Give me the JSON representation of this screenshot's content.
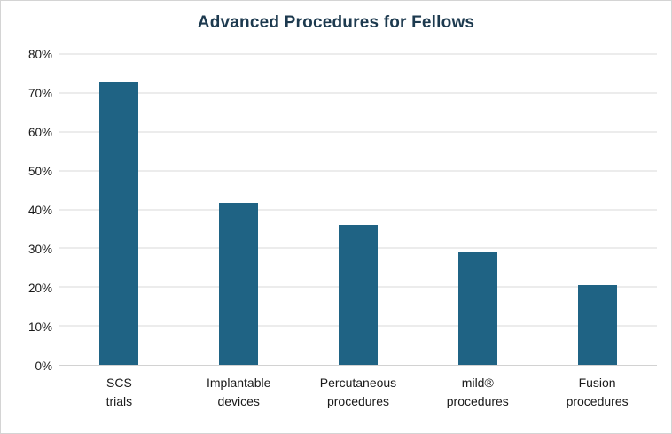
{
  "window": {
    "background_color": "#ffffff",
    "frame_border_color": "#d4d4d4"
  },
  "chart_data": {
    "type": "bar",
    "title": "Advanced Procedures for Fellows",
    "categories": [
      "SCS\ntrials",
      "Implantable\ndevices",
      "Percutaneous\nprocedures",
      "mild®\nprocedures",
      "Fusion\nprocedures"
    ],
    "values": [
      72.7,
      41.8,
      36.1,
      28.9,
      20.5
    ],
    "xlabel": "",
    "ylabel": "",
    "ylim": [
      0,
      80
    ],
    "ytick_step": 10,
    "ytick_labels": [
      "0%",
      "10%",
      "20%",
      "30%",
      "40%",
      "50%",
      "60%",
      "70%",
      "80%"
    ],
    "grid": true,
    "legend": "none",
    "bar_color": "#1f6384",
    "title_color": "#1d3a4f",
    "gridline_color": "#d9d9d9",
    "axis_line_color": "#d2d2d2",
    "tick_label_color": "#1a1a1a"
  }
}
